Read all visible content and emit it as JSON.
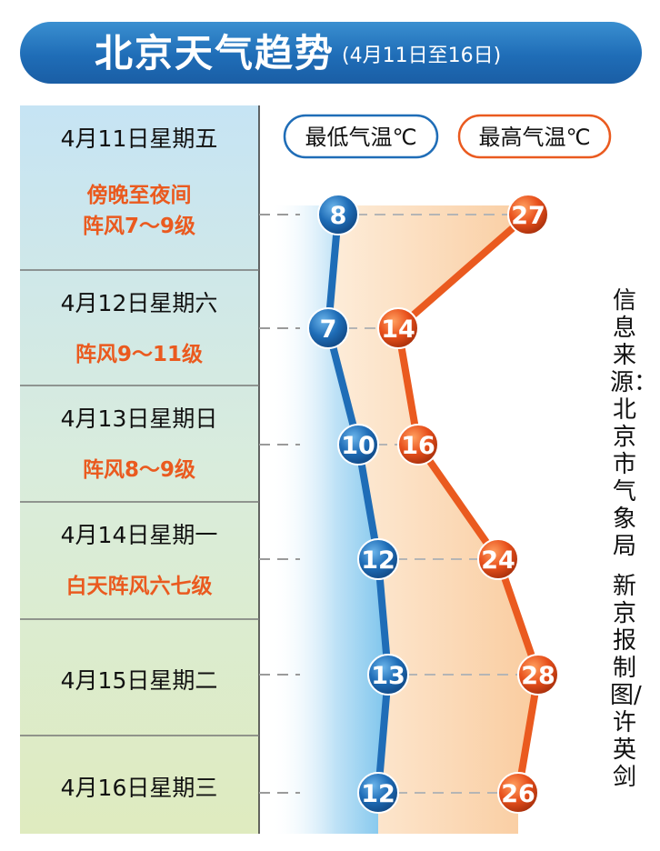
{
  "title": "北京天气趋势",
  "date_range": "(4月11日至16日)",
  "source": "信息来源：北京市气象局",
  "credit": "新京报制图/许英剑",
  "colors": {
    "low": "#1f6db7",
    "high": "#ea5a1f",
    "wind": "#ea5a1f",
    "banner": "#2678c0"
  },
  "chart_data": {
    "type": "line",
    "title": "北京天气趋势",
    "unit": "℃",
    "categories": [
      "4月11日星期五",
      "4月12日星期六",
      "4月13日星期日",
      "4月14日星期一",
      "4月15日星期二",
      "4月16日星期三"
    ],
    "wind": [
      [
        "傍晚至夜间",
        "阵风7～9级"
      ],
      [
        "阵风9～11级"
      ],
      [
        "阵风8～9级"
      ],
      [
        "白天阵风六七级"
      ],
      [],
      []
    ],
    "series": [
      {
        "name": "最低气温℃",
        "values": [
          8,
          7,
          10,
          12,
          13,
          12
        ]
      },
      {
        "name": "最高气温℃",
        "values": [
          27,
          14,
          16,
          24,
          28,
          26
        ]
      }
    ],
    "legend_position": "top"
  }
}
